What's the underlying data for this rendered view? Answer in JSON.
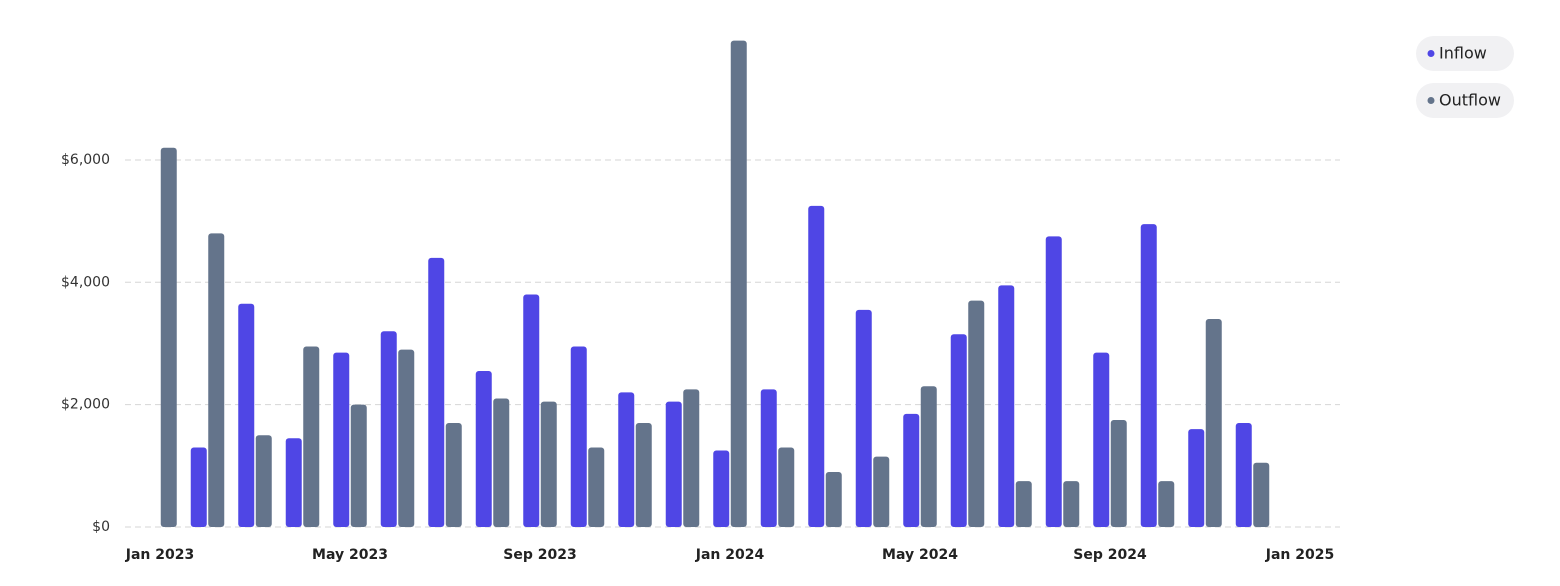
{
  "chart_data": {
    "type": "bar",
    "categories": [
      "Jan 2023",
      null,
      null,
      null,
      "May 2023",
      null,
      null,
      null,
      "Sep 2023",
      null,
      null,
      null,
      "Jan 2024",
      null,
      null,
      null,
      "May 2024",
      null,
      null,
      null,
      "Sep 2024",
      null,
      null,
      null,
      "Jan 2025"
    ],
    "series": [
      {
        "name": "Inflow",
        "color": "#4f46e5",
        "values": [
          0,
          1300,
          3650,
          1450,
          2850,
          3200,
          4400,
          2550,
          3800,
          2950,
          2200,
          2050,
          1250,
          2250,
          5250,
          3550,
          1850,
          3150,
          3950,
          4750,
          2850,
          4950,
          1600,
          1700,
          null
        ]
      },
      {
        "name": "Outflow",
        "color": "#64748b",
        "values": [
          6200,
          4800,
          1500,
          2950,
          2000,
          2900,
          1700,
          2100,
          2050,
          1300,
          1700,
          2250,
          7950,
          1300,
          900,
          1150,
          2300,
          3700,
          750,
          750,
          1750,
          750,
          3400,
          1050,
          null
        ]
      }
    ],
    "ylim": [
      0,
      8000
    ],
    "yticks": [
      {
        "value": 0,
        "label": "$0"
      },
      {
        "value": 2000,
        "label": "$2,000"
      },
      {
        "value": 4000,
        "label": "$4,000"
      },
      {
        "value": 6000,
        "label": "$6,000"
      }
    ],
    "grid": true
  }
}
